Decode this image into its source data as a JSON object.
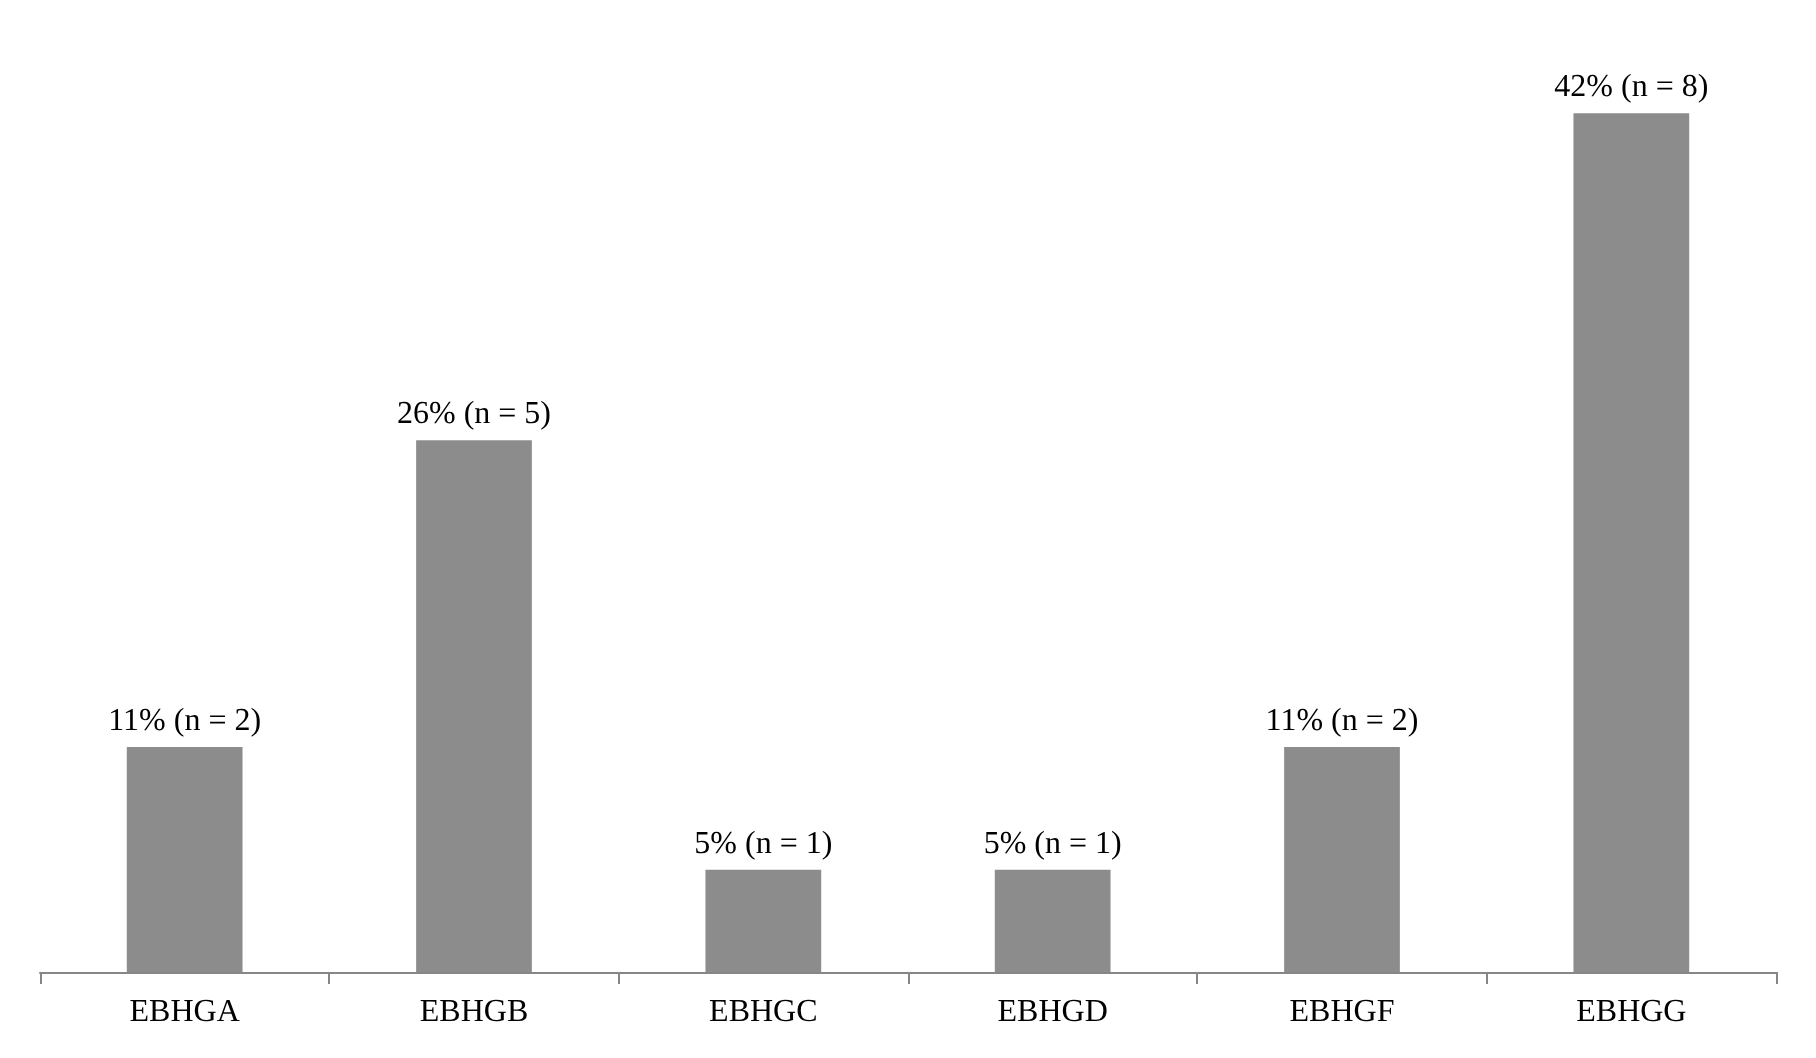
{
  "chart_data": {
    "type": "bar",
    "categories": [
      "EBHGA",
      "EBHGB",
      "EBHGC",
      "EBHGD",
      "EBHGF",
      "EBHGG"
    ],
    "values": [
      11,
      26,
      5,
      5,
      11,
      42
    ],
    "value_labels": [
      "11% (n = 2)",
      "26% (n = 5)",
      "5% (n = 1)",
      "5% (n = 1)",
      "11% (n = 2)",
      "42% (n = 8)"
    ],
    "color": "#8c8c8c"
  }
}
